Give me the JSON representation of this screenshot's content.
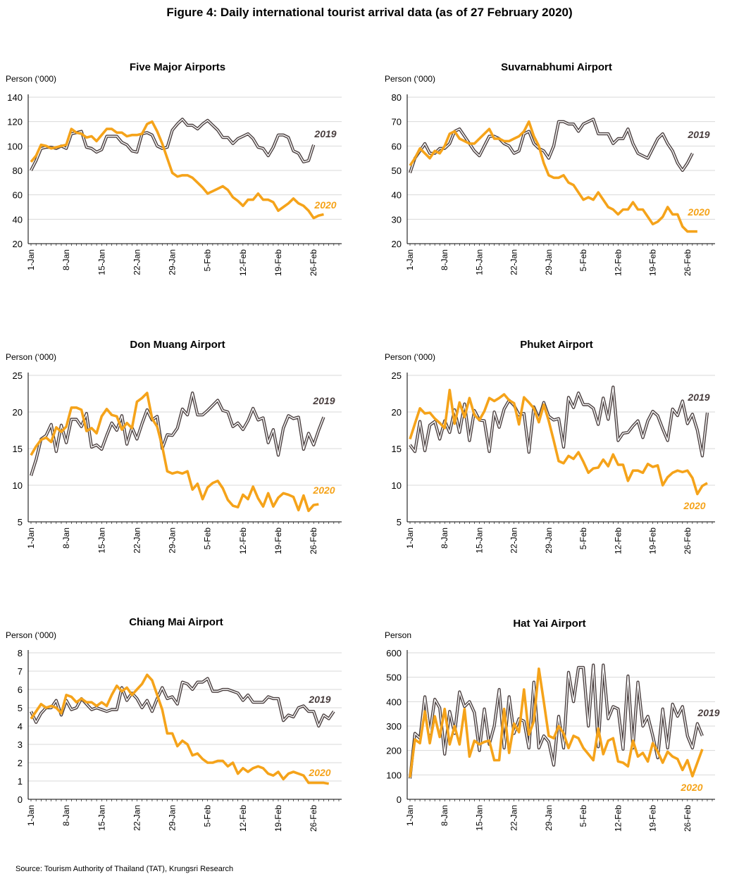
{
  "figure_title": "Figure 4: Daily international tourist arrival data (as of 27 February 2020)",
  "source": "Source: Tourism Authority of Thailand (TAT), Krungsri Research",
  "colors": {
    "y2019": "#4a3f3f",
    "y2020": "#f5a31a",
    "axis": "#000000",
    "grid": "#d9d9d9"
  },
  "x_tick_labels": [
    "1-Jan",
    "8-Jan",
    "15-Jan",
    "22-Jan",
    "29-Jan",
    "5-Feb",
    "12-Feb",
    "19-Feb",
    "26-Feb"
  ],
  "chart_data": [
    {
      "type": "line",
      "title": "Five Major Airports",
      "unit": "Person (‘000)",
      "ylim": [
        20,
        140
      ],
      "yticks": [
        20,
        40,
        60,
        80,
        100,
        120,
        140
      ],
      "series": [
        {
          "name": "2019",
          "values": [
            80,
            88,
            98,
            99,
            99,
            98,
            100,
            98,
            110,
            111,
            112,
            99,
            98,
            95,
            97,
            108,
            108,
            108,
            103,
            101,
            96,
            95,
            110,
            111,
            109,
            100,
            98,
            99,
            113,
            118,
            122,
            117,
            117,
            114,
            118,
            121,
            117,
            113,
            107,
            107,
            102,
            106,
            108,
            110,
            106,
            99,
            98,
            92,
            99,
            109,
            109,
            107,
            96,
            94,
            87,
            88,
            101
          ]
        },
        {
          "name": "2020",
          "values": [
            87,
            92,
            101,
            100,
            98,
            99,
            100,
            101,
            114,
            111,
            110,
            107,
            108,
            104,
            109,
            114,
            114,
            111,
            111,
            108,
            109,
            109,
            110,
            118,
            120,
            112,
            102,
            90,
            78,
            75,
            76,
            76,
            74,
            70,
            66,
            61,
            63,
            65,
            67,
            64,
            58,
            55,
            51,
            56,
            56,
            61,
            56,
            56,
            54,
            47,
            50,
            53,
            57,
            53,
            51,
            47,
            41,
            43,
            44
          ]
        }
      ]
    },
    {
      "type": "line",
      "title": "Suvarnabhumi Airport",
      "unit": "Person (‘000)",
      "ylim": [
        20,
        80
      ],
      "yticks": [
        20,
        30,
        40,
        50,
        60,
        70,
        80
      ],
      "series": [
        {
          "name": "2019",
          "values": [
            49,
            55,
            58,
            61,
            57,
            57,
            59,
            59,
            61,
            66,
            67,
            64,
            61,
            58,
            56,
            60,
            64,
            64,
            63,
            61,
            60,
            57,
            58,
            65,
            66,
            61,
            59,
            58,
            55,
            60,
            70,
            70,
            69,
            69,
            66,
            69,
            70,
            71,
            65,
            65,
            65,
            61,
            63,
            63,
            67,
            61,
            57,
            56,
            55,
            59,
            63,
            65,
            61,
            58,
            53,
            50,
            53,
            57
          ]
        },
        {
          "name": "2020",
          "values": [
            52,
            55,
            59,
            57,
            55,
            58,
            57,
            60,
            65,
            66,
            63,
            62,
            61,
            61,
            63,
            65,
            67,
            63,
            63,
            62,
            62,
            63,
            64,
            66,
            70,
            64,
            60,
            53,
            48,
            47,
            47,
            48,
            45,
            44,
            41,
            38,
            39,
            38,
            41,
            38,
            35,
            34,
            32,
            34,
            34,
            37,
            34,
            34,
            31,
            28,
            29,
            31,
            35,
            32,
            32,
            27,
            25,
            25,
            25
          ]
        }
      ]
    },
    {
      "type": "line",
      "title": "Don Muang Airport",
      "unit": "Person (‘000)",
      "ylim": [
        5,
        25
      ],
      "yticks": [
        5,
        10,
        15,
        20,
        25
      ],
      "series": [
        {
          "name": "2019",
          "values": [
            11.3,
            13.5,
            16.3,
            16.8,
            18.3,
            14.6,
            18.2,
            15.8,
            19.0,
            19.0,
            18.0,
            19.8,
            15.2,
            15.5,
            14.9,
            16.8,
            18.5,
            17.5,
            19.5,
            15.6,
            17.9,
            16.3,
            18.4,
            20.3,
            18.9,
            19.4,
            15.0,
            16.9,
            16.8,
            17.8,
            20.4,
            19.6,
            22.6,
            19.6,
            19.6,
            20.2,
            20.9,
            21.6,
            20.2,
            20.0,
            18.0,
            18.5,
            17.6,
            18.8,
            20.5,
            18.9,
            19.2,
            15.8,
            17.6,
            14.1,
            17.8,
            19.5,
            19.1,
            19.3,
            14.9,
            17.1,
            15.5,
            17.5,
            19.3
          ]
        },
        {
          "name": "2020",
          "values": [
            14.1,
            15.3,
            16.2,
            16.5,
            15.9,
            17.9,
            17.3,
            18.0,
            20.6,
            20.6,
            20.3,
            17.4,
            17.8,
            17.1,
            19.4,
            20.4,
            19.6,
            19.4,
            17.6,
            18.5,
            17.8,
            21.4,
            21.9,
            22.6,
            19.1,
            18.0,
            15.3,
            11.9,
            11.6,
            11.8,
            11.6,
            11.9,
            9.4,
            10.2,
            8.1,
            9.7,
            10.3,
            10.6,
            9.6,
            8.0,
            7.2,
            7.0,
            8.7,
            8.1,
            9.8,
            8.2,
            7.1,
            8.9,
            7.1,
            8.3,
            8.9,
            8.7,
            8.4,
            6.6,
            8.6,
            6.5,
            7.3,
            7.4
          ]
        }
      ]
    },
    {
      "type": "line",
      "title": "Phuket Airport",
      "unit": "Person (‘000)",
      "ylim": [
        5,
        25
      ],
      "yticks": [
        5,
        10,
        15,
        20,
        25
      ],
      "series": [
        {
          "name": "2019",
          "values": [
            15.5,
            14.6,
            18.7,
            14.7,
            18.2,
            18.7,
            16.3,
            18.8,
            17.2,
            20.3,
            17.2,
            21.1,
            16.1,
            20.2,
            18.9,
            18.8,
            14.6,
            20.0,
            17.9,
            20.4,
            21.6,
            20.9,
            19.6,
            19.8,
            14.5,
            20.7,
            19.1,
            21.3,
            19.4,
            18.9,
            19.1,
            15.2,
            22.0,
            20.6,
            22.6,
            21.0,
            21.0,
            20.5,
            18.3,
            21.9,
            19.0,
            23.4,
            16.1,
            17.1,
            17.2,
            18.1,
            18.8,
            16.5,
            18.8,
            20.1,
            19.5,
            17.7,
            16.1,
            20.4,
            19.5,
            21.5,
            18.4,
            19.7,
            17.5,
            14.0,
            19.9
          ]
        },
        {
          "name": "2020",
          "values": [
            16.3,
            18.4,
            20.5,
            19.8,
            19.9,
            19.1,
            18.5,
            17.8,
            23.0,
            18.4,
            21.3,
            19.3,
            21.9,
            19.6,
            18.9,
            20.1,
            21.9,
            21.5,
            21.9,
            22.4,
            21.6,
            21.2,
            18.3,
            22.0,
            21.3,
            20.5,
            18.6,
            21.0,
            18.8,
            16.1,
            13.3,
            13.0,
            14.0,
            13.6,
            14.5,
            13.2,
            11.7,
            12.3,
            12.4,
            13.5,
            12.6,
            14.2,
            12.8,
            12.8,
            10.6,
            12.0,
            12.0,
            11.7,
            12.9,
            12.5,
            12.7,
            10.0,
            11.1,
            11.7,
            12.0,
            11.8,
            12.0,
            11.0,
            8.8,
            9.9,
            10.3
          ]
        }
      ]
    },
    {
      "type": "line",
      "title": "Chiang Mai Airport",
      "unit": "Person (‘000)",
      "ylim": [
        0,
        8
      ],
      "yticks": [
        0,
        1,
        2,
        3,
        4,
        5,
        6,
        7,
        8
      ],
      "series": [
        {
          "name": "2019",
          "values": [
            4.8,
            4.2,
            4.7,
            5.0,
            5.0,
            5.4,
            4.6,
            5.4,
            4.9,
            5.0,
            5.5,
            5.2,
            4.9,
            5.0,
            4.9,
            4.8,
            4.9,
            4.9,
            6.1,
            5.4,
            5.8,
            5.5,
            5.0,
            5.4,
            4.8,
            5.5,
            6.1,
            5.5,
            5.6,
            5.2,
            6.4,
            6.3,
            6.0,
            6.4,
            6.4,
            6.6,
            5.9,
            5.9,
            6.0,
            6.0,
            5.9,
            5.8,
            5.4,
            5.7,
            5.3,
            5.3,
            5.3,
            5.6,
            5.5,
            5.5,
            4.3,
            4.6,
            4.5,
            5.0,
            5.1,
            4.8,
            4.8,
            4.0,
            4.6,
            4.4,
            4.8
          ]
        },
        {
          "name": "2020",
          "values": [
            4.4,
            4.8,
            5.2,
            5.0,
            5.1,
            5.0,
            4.7,
            5.7,
            5.6,
            5.3,
            5.5,
            5.3,
            5.3,
            5.1,
            5.3,
            5.1,
            5.7,
            6.2,
            5.9,
            6.1,
            5.7,
            6.0,
            6.3,
            6.8,
            6.5,
            5.7,
            4.9,
            3.6,
            3.6,
            2.9,
            3.2,
            3.0,
            2.4,
            2.5,
            2.2,
            2.0,
            2.0,
            2.1,
            2.1,
            1.8,
            2.0,
            1.4,
            1.7,
            1.5,
            1.7,
            1.8,
            1.7,
            1.4,
            1.3,
            1.5,
            1.1,
            1.4,
            1.5,
            1.4,
            1.3,
            0.9,
            0.9,
            0.9,
            0.9,
            0.85
          ]
        }
      ]
    },
    {
      "type": "line",
      "title": "Hat Yai Airport",
      "unit": "Person",
      "ylim": [
        0,
        600
      ],
      "yticks": [
        0,
        100,
        200,
        300,
        400,
        500,
        600
      ],
      "series": [
        {
          "name": "2019",
          "values": [
            85,
            270,
            250,
            420,
            270,
            410,
            375,
            185,
            360,
            270,
            440,
            380,
            400,
            355,
            200,
            370,
            225,
            300,
            450,
            210,
            420,
            270,
            330,
            320,
            210,
            480,
            210,
            260,
            235,
            140,
            340,
            210,
            520,
            400,
            540,
            540,
            300,
            550,
            215,
            550,
            330,
            380,
            370,
            205,
            505,
            210,
            480,
            300,
            340,
            260,
            170,
            370,
            210,
            390,
            340,
            380,
            260,
            210,
            310,
            260
          ]
        },
        {
          "name": "2020",
          "values": [
            90,
            245,
            230,
            360,
            230,
            340,
            255,
            370,
            225,
            300,
            225,
            370,
            175,
            240,
            225,
            235,
            240,
            160,
            160,
            370,
            190,
            310,
            275,
            450,
            265,
            320,
            535,
            400,
            260,
            250,
            300,
            270,
            210,
            260,
            250,
            210,
            185,
            160,
            290,
            185,
            240,
            250,
            155,
            150,
            135,
            240,
            175,
            190,
            155,
            230,
            195,
            150,
            195,
            175,
            165,
            120,
            160,
            95,
            150,
            205
          ]
        }
      ]
    }
  ]
}
